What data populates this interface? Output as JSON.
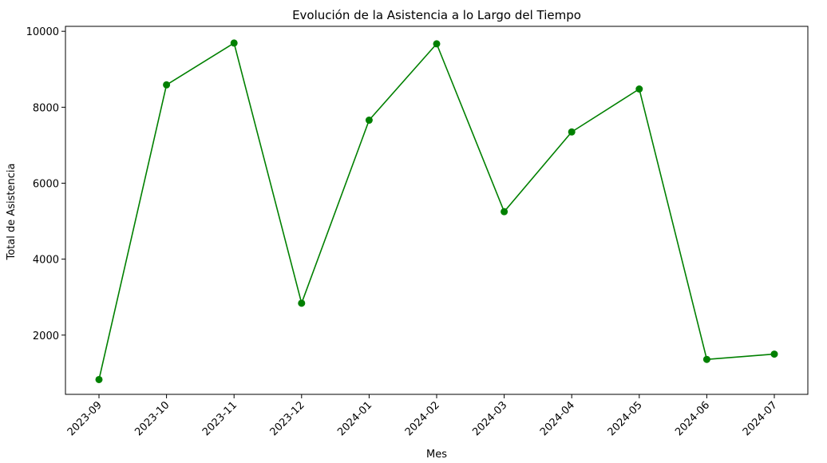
{
  "chart_data": {
    "type": "line",
    "title": "Evolución de la Asistencia a lo Largo del Tiempo",
    "xlabel": "Mes",
    "ylabel": "Total de Asistencia",
    "categories": [
      "2023-09",
      "2023-10",
      "2023-11",
      "2023-12",
      "2024-01",
      "2024-02",
      "2024-03",
      "2024-04",
      "2024-05",
      "2024-06",
      "2024-07"
    ],
    "series": [
      {
        "values": [
          830,
          8590,
          9690,
          2840,
          7660,
          9670,
          5250,
          7350,
          8480,
          1360,
          1500
        ],
        "color": "#008000",
        "marker": "circle"
      }
    ],
    "ylim": [
      440,
      10130
    ],
    "yticks": [
      2000,
      4000,
      6000,
      8000,
      10000
    ],
    "grid": false,
    "legend": "none"
  }
}
